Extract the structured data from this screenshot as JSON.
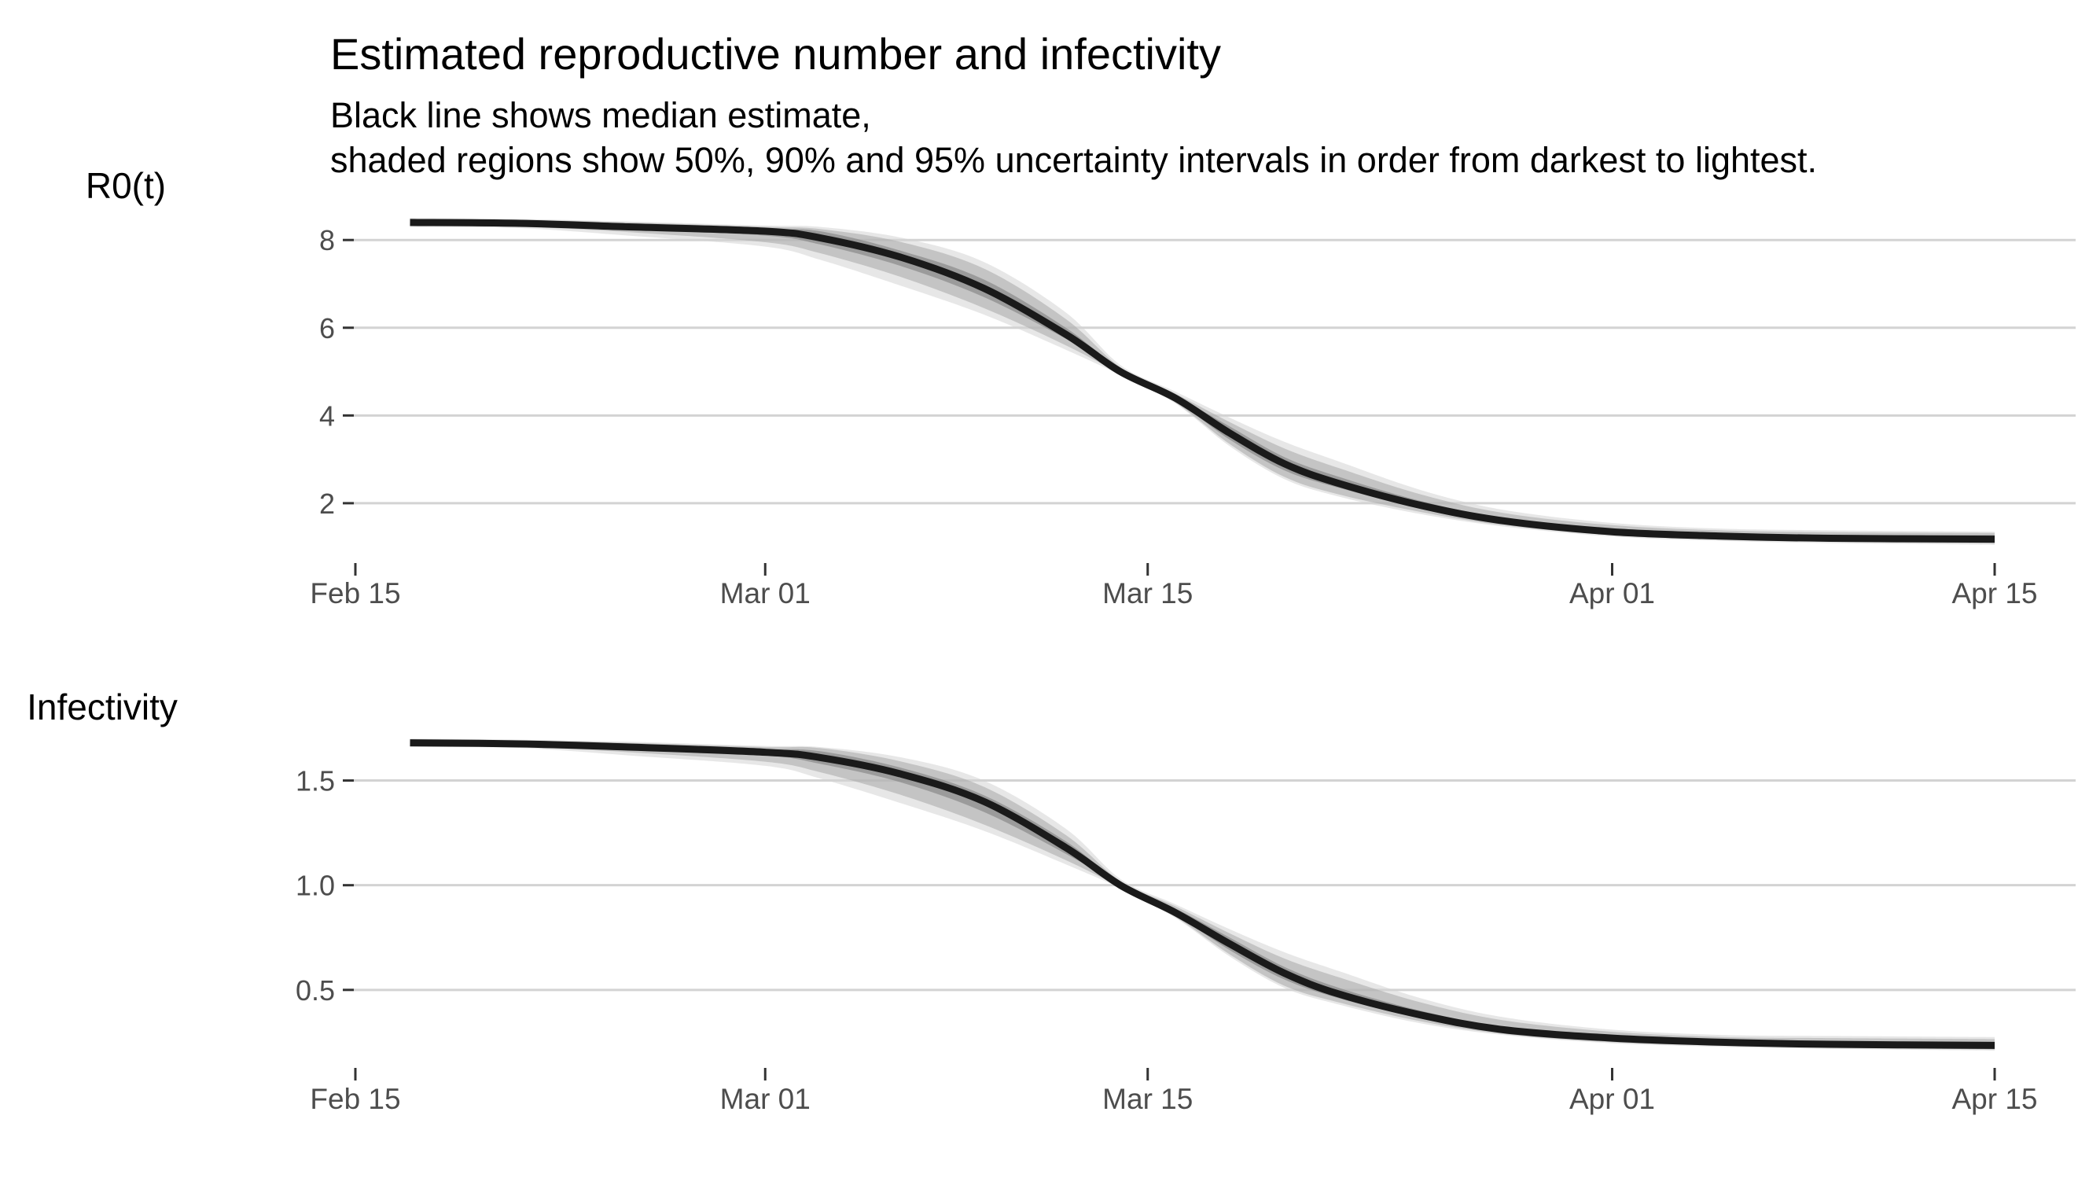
{
  "title": "Estimated reproductive number and infectivity",
  "subtitle": [
    "Black line shows median estimate,",
    "shaded regions show 50%, 90% and 95% uncertainty intervals in order from darkest to lightest."
  ],
  "colors": {
    "median": "#1a1a1a",
    "band50": "#7a7a7a",
    "band90": "#a8a8a8",
    "band95": "#d4d4d4",
    "grid": "#d3d3d3",
    "tick_label": "#4d4d4d"
  },
  "chart_data": [
    {
      "type": "area",
      "ylabel": "R0(t)",
      "x_type": "date",
      "xlim": [
        "2020-02-15",
        "2020-04-15"
      ],
      "x_ticks": [
        "2020-02-15",
        "2020-03-01",
        "2020-03-15",
        "2020-04-01",
        "2020-04-15"
      ],
      "x_tick_labels": [
        "Feb 15",
        "Mar 01",
        "Mar 15",
        "Apr 01",
        "Apr 15"
      ],
      "ylim": [
        0.6,
        8.9
      ],
      "y_ticks": [
        2,
        4,
        6,
        8
      ],
      "y_tick_labels": [
        "2",
        "4",
        "6",
        "8"
      ],
      "grid": "horizontal",
      "x": [
        "2020-02-17",
        "2020-02-21",
        "2020-02-25",
        "2020-03-01",
        "2020-03-03",
        "2020-03-06",
        "2020-03-09",
        "2020-03-12",
        "2020-03-14",
        "2020-03-16",
        "2020-03-18",
        "2020-03-20",
        "2020-03-22",
        "2020-03-25",
        "2020-03-28",
        "2020-04-01",
        "2020-04-05",
        "2020-04-09",
        "2020-04-15"
      ],
      "median": [
        8.4,
        8.38,
        8.3,
        8.2,
        8.05,
        7.6,
        6.9,
        5.85,
        5.0,
        4.4,
        3.6,
        2.9,
        2.45,
        1.95,
        1.6,
        1.35,
        1.25,
        1.2,
        1.18
      ],
      "band50": {
        "lo": [
          8.35,
          8.33,
          8.25,
          8.1,
          7.9,
          7.4,
          6.7,
          5.75,
          5.0,
          4.35,
          3.45,
          2.75,
          2.35,
          1.88,
          1.55,
          1.3,
          1.2,
          1.15,
          1.12
        ],
        "hi": [
          8.45,
          8.43,
          8.35,
          8.25,
          8.2,
          7.75,
          7.1,
          6.0,
          5.05,
          4.45,
          3.75,
          3.05,
          2.6,
          2.05,
          1.67,
          1.42,
          1.32,
          1.28,
          1.27
        ]
      },
      "band90": {
        "lo": [
          8.32,
          8.3,
          8.18,
          7.95,
          7.7,
          7.15,
          6.45,
          5.6,
          4.95,
          4.3,
          3.35,
          2.6,
          2.2,
          1.8,
          1.5,
          1.27,
          1.17,
          1.12,
          1.08
        ],
        "hi": [
          8.48,
          8.46,
          8.4,
          8.3,
          8.25,
          7.95,
          7.35,
          6.2,
          5.1,
          4.5,
          3.85,
          3.25,
          2.8,
          2.2,
          1.78,
          1.5,
          1.38,
          1.34,
          1.32
        ]
      },
      "band95": {
        "lo": [
          8.3,
          8.27,
          8.1,
          7.85,
          7.55,
          6.95,
          6.3,
          5.5,
          4.92,
          4.28,
          3.3,
          2.55,
          2.15,
          1.75,
          1.47,
          1.24,
          1.14,
          1.09,
          1.05
        ],
        "hi": [
          8.5,
          8.48,
          8.42,
          8.33,
          8.3,
          8.05,
          7.5,
          6.35,
          5.15,
          4.55,
          3.95,
          3.4,
          2.95,
          2.3,
          1.85,
          1.55,
          1.42,
          1.38,
          1.35
        ]
      }
    },
    {
      "type": "area",
      "ylabel": "Infectivity",
      "x_type": "date",
      "xlim": [
        "2020-02-15",
        "2020-04-15"
      ],
      "x_ticks": [
        "2020-02-15",
        "2020-03-01",
        "2020-03-15",
        "2020-04-01",
        "2020-04-15"
      ],
      "x_tick_labels": [
        "Feb 15",
        "Mar 01",
        "Mar 15",
        "Apr 01",
        "Apr 15"
      ],
      "ylim": [
        0.12,
        1.78
      ],
      "y_ticks": [
        0.5,
        1.0,
        1.5
      ],
      "y_tick_labels": [
        "0.5",
        "1.0",
        "1.5"
      ],
      "grid": "horizontal",
      "x": [
        "2020-02-17",
        "2020-02-21",
        "2020-02-25",
        "2020-03-01",
        "2020-03-03",
        "2020-03-06",
        "2020-03-09",
        "2020-03-12",
        "2020-03-14",
        "2020-03-16",
        "2020-03-18",
        "2020-03-20",
        "2020-03-22",
        "2020-03-25",
        "2020-03-28",
        "2020-04-01",
        "2020-04-05",
        "2020-04-09",
        "2020-04-15"
      ],
      "median": [
        1.68,
        1.675,
        1.66,
        1.635,
        1.61,
        1.53,
        1.4,
        1.18,
        1.0,
        0.87,
        0.72,
        0.58,
        0.48,
        0.38,
        0.31,
        0.27,
        0.25,
        0.24,
        0.235
      ],
      "band50": {
        "lo": [
          1.67,
          1.665,
          1.65,
          1.62,
          1.58,
          1.49,
          1.35,
          1.15,
          1.0,
          0.86,
          0.69,
          0.55,
          0.46,
          0.365,
          0.3,
          0.26,
          0.24,
          0.23,
          0.225
        ],
        "hi": [
          1.69,
          1.685,
          1.67,
          1.65,
          1.64,
          1.56,
          1.43,
          1.21,
          1.01,
          0.89,
          0.75,
          0.61,
          0.51,
          0.4,
          0.325,
          0.285,
          0.265,
          0.255,
          0.25
        ]
      },
      "band90": {
        "lo": [
          1.665,
          1.66,
          1.635,
          1.59,
          1.54,
          1.43,
          1.29,
          1.12,
          0.99,
          0.85,
          0.67,
          0.52,
          0.44,
          0.35,
          0.29,
          0.25,
          0.235,
          0.225,
          0.215
        ],
        "hi": [
          1.695,
          1.69,
          1.68,
          1.66,
          1.655,
          1.59,
          1.47,
          1.24,
          1.02,
          0.9,
          0.77,
          0.65,
          0.56,
          0.44,
          0.355,
          0.3,
          0.275,
          0.27,
          0.265
        ]
      },
      "band95": {
        "lo": [
          1.66,
          1.655,
          1.62,
          1.57,
          1.51,
          1.39,
          1.26,
          1.1,
          0.985,
          0.845,
          0.66,
          0.51,
          0.43,
          0.34,
          0.285,
          0.245,
          0.228,
          0.218,
          0.21
        ],
        "hi": [
          1.7,
          1.695,
          1.685,
          1.665,
          1.66,
          1.61,
          1.5,
          1.27,
          1.03,
          0.91,
          0.79,
          0.68,
          0.59,
          0.46,
          0.37,
          0.31,
          0.285,
          0.28,
          0.275
        ]
      }
    }
  ]
}
